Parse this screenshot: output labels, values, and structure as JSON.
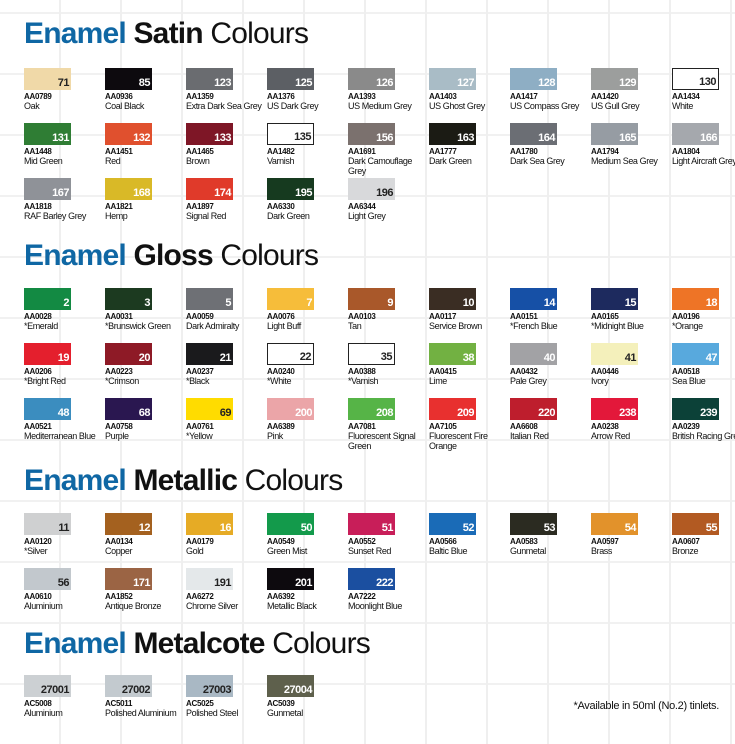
{
  "brand": "Enamel",
  "word": "Colours",
  "sections": [
    {
      "type": "Satin",
      "items": [
        {
          "code": "AA0789",
          "name": "Oak",
          "num": "71",
          "color": "#f0d9a8",
          "num_color": "#222"
        },
        {
          "code": "AA0936",
          "name": "Coal Black",
          "num": "85",
          "color": "#0d0a0e"
        },
        {
          "code": "AA1359",
          "name": "Extra Dark Sea Grey",
          "num": "123",
          "color": "#6a6c70"
        },
        {
          "code": "AA1376",
          "name": "US Dark Grey",
          "num": "125",
          "color": "#5c5f64"
        },
        {
          "code": "AA1393",
          "name": "US Medium Grey",
          "num": "126",
          "color": "#8a8a8a"
        },
        {
          "code": "AA1403",
          "name": "US Ghost Grey",
          "num": "127",
          "color": "#a9bcc6"
        },
        {
          "code": "AA1417",
          "name": "US Compass Grey",
          "num": "128",
          "color": "#8eaec4"
        },
        {
          "code": "AA1420",
          "name": "US Gull Grey",
          "num": "129",
          "color": "#9c9e9d"
        },
        {
          "code": "AA1434",
          "name": "White",
          "num": "130",
          "color": "#ffffff",
          "num_color": "#222",
          "border": true
        },
        {
          "code": "AA1448",
          "name": "Mid Green",
          "num": "131",
          "color": "#2f7d34"
        },
        {
          "code": "AA1451",
          "name": "Red",
          "num": "132",
          "color": "#e0502e"
        },
        {
          "code": "AA1465",
          "name": "Brown",
          "num": "133",
          "color": "#7e1626"
        },
        {
          "code": "AA1482",
          "name": "Varnish",
          "num": "135",
          "color": "#ffffff",
          "num_color": "#222",
          "border": true
        },
        {
          "code": "AA1691",
          "name": "Dark Camouflage Grey",
          "num": "156",
          "color": "#7b716e"
        },
        {
          "code": "AA1777",
          "name": "Dark Green",
          "num": "163",
          "color": "#1b1b14"
        },
        {
          "code": "AA1780",
          "name": "Dark Sea Grey",
          "num": "164",
          "color": "#6b6e74"
        },
        {
          "code": "AA1794",
          "name": "Medium Sea Grey",
          "num": "165",
          "color": "#969ca3"
        },
        {
          "code": "AA1804",
          "name": "Light Aircraft Grey",
          "num": "166",
          "color": "#a5a8ad"
        },
        {
          "code": "AA1818",
          "name": "RAF Barley Grey",
          "num": "167",
          "color": "#8f9298"
        },
        {
          "code": "AA1821",
          "name": "Hemp",
          "num": "168",
          "color": "#d9b927"
        },
        {
          "code": "AA1897",
          "name": "Signal Red",
          "num": "174",
          "color": "#e03a2a"
        },
        {
          "code": "AA6330",
          "name": "Dark Green",
          "num": "195",
          "color": "#163a1f"
        },
        {
          "code": "AA6344",
          "name": "Light Grey",
          "num": "196",
          "color": "#d8d9db",
          "num_color": "#222"
        }
      ]
    },
    {
      "type": "Gloss",
      "items": [
        {
          "code": "AA0028",
          "name": "*Emerald",
          "num": "2",
          "color": "#138a43"
        },
        {
          "code": "AA0031",
          "name": "*Brunswick Green",
          "num": "3",
          "color": "#1c3a20"
        },
        {
          "code": "AA0059",
          "name": "Dark Admiralty",
          "num": "5",
          "color": "#6e7075"
        },
        {
          "code": "AA0076",
          "name": "Light Buff",
          "num": "7",
          "color": "#f6bd3a"
        },
        {
          "code": "AA0103",
          "name": "Tan",
          "num": "9",
          "color": "#a9582a"
        },
        {
          "code": "AA0117",
          "name": "Service Brown",
          "num": "10",
          "color": "#3a2d23"
        },
        {
          "code": "AA0151",
          "name": "*French Blue",
          "num": "14",
          "color": "#1650a6"
        },
        {
          "code": "AA0165",
          "name": "*Midnight Blue",
          "num": "15",
          "color": "#1d2a5e"
        },
        {
          "code": "AA0196",
          "name": "*Orange",
          "num": "18",
          "color": "#ee7426"
        },
        {
          "code": "AA0206",
          "name": "*Bright Red",
          "num": "19",
          "color": "#e41f2d"
        },
        {
          "code": "AA0223",
          "name": "*Crimson",
          "num": "20",
          "color": "#8e1a26"
        },
        {
          "code": "AA0237",
          "name": "*Black",
          "num": "21",
          "color": "#1a1a1c"
        },
        {
          "code": "AA0240",
          "name": "*White",
          "num": "22",
          "color": "#ffffff",
          "num_color": "#222",
          "border": true
        },
        {
          "code": "AA0388",
          "name": "*Varnish",
          "num": "35",
          "color": "#ffffff",
          "num_color": "#222",
          "border": true
        },
        {
          "code": "AA0415",
          "name": "Lime",
          "num": "38",
          "color": "#72b142"
        },
        {
          "code": "AA0432",
          "name": "Pale Grey",
          "num": "40",
          "color": "#a2a2a5"
        },
        {
          "code": "AA0446",
          "name": "Ivory",
          "num": "41",
          "color": "#f4f0bb",
          "num_color": "#222"
        },
        {
          "code": "AA0518",
          "name": "Sea Blue",
          "num": "47",
          "color": "#58a9dd"
        },
        {
          "code": "AA0521",
          "name": "Mediterranean Blue",
          "num": "48",
          "color": "#3b8dbf"
        },
        {
          "code": "AA0758",
          "name": "Purple",
          "num": "68",
          "color": "#2a1750"
        },
        {
          "code": "AA0761",
          "name": "*Yellow",
          "num": "69",
          "color": "#ffdc00",
          "num_color": "#222"
        },
        {
          "code": "AA6389",
          "name": "Pink",
          "num": "200",
          "color": "#eba5a8"
        },
        {
          "code": "AA7081",
          "name": "Fluorescent Signal Green",
          "num": "208",
          "color": "#56b447"
        },
        {
          "code": "AA7105",
          "name": "Fluorescent Fire Orange",
          "num": "209",
          "color": "#e8302f"
        },
        {
          "code": "AA6608",
          "name": "Italian Red",
          "num": "220",
          "color": "#be1e2d"
        },
        {
          "code": "AA0238",
          "name": "Arrow Red",
          "num": "238",
          "color": "#e3183a"
        },
        {
          "code": "AA0239",
          "name": "British Racing Green",
          "num": "239",
          "color": "#0c4138"
        }
      ]
    },
    {
      "type": "Metallic",
      "items": [
        {
          "code": "AA0120",
          "name": "*Silver",
          "num": "11",
          "color": "#cfd0d1",
          "num_color": "#222"
        },
        {
          "code": "AA0134",
          "name": "Copper",
          "num": "12",
          "color": "#a4611f"
        },
        {
          "code": "AA0179",
          "name": "Gold",
          "num": "16",
          "color": "#e6ab25"
        },
        {
          "code": "AA0549",
          "name": "Green Mist",
          "num": "50",
          "color": "#139a4b"
        },
        {
          "code": "AA0552",
          "name": "Sunset Red",
          "num": "51",
          "color": "#c81e59"
        },
        {
          "code": "AA0566",
          "name": "Baltic Blue",
          "num": "52",
          "color": "#1a6bb7"
        },
        {
          "code": "AA0583",
          "name": "Gunmetal",
          "num": "53",
          "color": "#2b2b21"
        },
        {
          "code": "AA0597",
          "name": "Brass",
          "num": "54",
          "color": "#e2922b"
        },
        {
          "code": "AA0607",
          "name": "Bronze",
          "num": "55",
          "color": "#b25a22"
        },
        {
          "code": "AA0610",
          "name": "Aluminium",
          "num": "56",
          "color": "#c2c8cd",
          "num_color": "#222"
        },
        {
          "code": "AA1852",
          "name": "Antique Bronze",
          "num": "171",
          "color": "#9b6444"
        },
        {
          "code": "AA6272",
          "name": "Chrome Silver",
          "num": "191",
          "color": "#e4e8ea",
          "num_color": "#222"
        },
        {
          "code": "AA6392",
          "name": "Metallic Black",
          "num": "201",
          "color": "#0d0a0e"
        },
        {
          "code": "AA7222",
          "name": "Moonlight Blue",
          "num": "222",
          "color": "#1b4fa0"
        }
      ]
    },
    {
      "type": "Metalcote",
      "items": [
        {
          "code": "AC5008",
          "name": "Aluminium",
          "num": "27001",
          "color": "#ccd0d3",
          "num_color": "#222"
        },
        {
          "code": "AC5011",
          "name": "Polished Aluminium",
          "num": "27002",
          "color": "#c3cacf",
          "num_color": "#222"
        },
        {
          "code": "AC5025",
          "name": "Polished Steel",
          "num": "27003",
          "color": "#a9b8c4",
          "num_color": "#222"
        },
        {
          "code": "AC5039",
          "name": "Gunmetal",
          "num": "27004",
          "color": "#5e604c"
        }
      ]
    }
  ],
  "footnote": "*Available in 50ml (No.2) tinlets."
}
